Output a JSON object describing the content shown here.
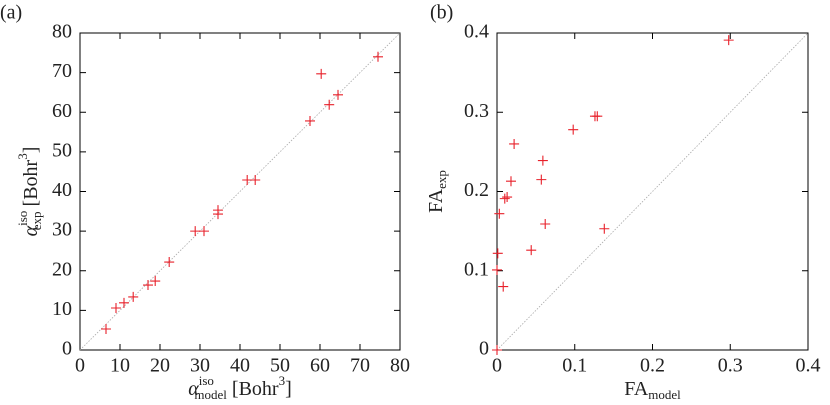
{
  "chart_data": [
    {
      "type": "scatter",
      "panel_label": "(a)",
      "xlabel": {
        "base": "α",
        "sup": "iso",
        "sub": "model",
        "unit": "[Bohr",
        "unit_sup": "3",
        "unit_end": "]"
      },
      "ylabel": {
        "base": "α",
        "sup": "iso",
        "sub": "exp",
        "unit": "[Bohr",
        "unit_sup": "3",
        "unit_end": "]"
      },
      "xlim": [
        0,
        80
      ],
      "ylim": [
        0,
        80
      ],
      "xticks": [
        0,
        10,
        20,
        30,
        40,
        50,
        60,
        70,
        80
      ],
      "yticks": [
        0,
        10,
        20,
        30,
        40,
        50,
        60,
        70,
        80
      ],
      "diagonal": true,
      "color": "#e8202a",
      "x": [
        6.5,
        9,
        11,
        13.3,
        17,
        18.8,
        22.3,
        28.8,
        31,
        34.5,
        34.5,
        41.8,
        43.8,
        57.5,
        60.3,
        62.3,
        64.5,
        74.5
      ],
      "values": [
        5.3,
        10.6,
        11.9,
        13.4,
        16.4,
        17.4,
        22.2,
        30,
        30,
        34.3,
        35.3,
        42.9,
        42.9,
        57.8,
        69.7,
        61.9,
        64.4,
        74
      ]
    },
    {
      "type": "scatter",
      "panel_label": "(b)",
      "xlabel": {
        "base": "FA",
        "sub": "model"
      },
      "ylabel": {
        "base": "FA",
        "sub": "exp"
      },
      "xlim": [
        0,
        0.4
      ],
      "ylim": [
        0,
        0.4
      ],
      "xticks": [
        0,
        0.1,
        0.2,
        0.3,
        0.4
      ],
      "yticks": [
        0,
        0.1,
        0.2,
        0.3,
        0.4
      ],
      "diagonal": true,
      "color": "#e8202a",
      "x": [
        0,
        0,
        0.001,
        0.003,
        0.008,
        0.01,
        0.013,
        0.018,
        0.022,
        0.044,
        0.057,
        0.059,
        0.062,
        0.098,
        0.126,
        0.129,
        0.138,
        0.298
      ],
      "values": [
        0,
        0.101,
        0.122,
        0.172,
        0.08,
        0.191,
        0.193,
        0.213,
        0.26,
        0.126,
        0.215,
        0.239,
        0.159,
        0.278,
        0.295,
        0.295,
        0.153,
        0.391
      ]
    }
  ]
}
